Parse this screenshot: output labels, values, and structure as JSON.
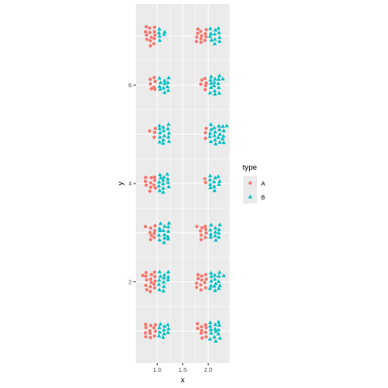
{
  "chart_data": {
    "type": "scatter",
    "subtype": "beeswarm",
    "xlabel": "x",
    "ylabel": "y",
    "xlim": [
      0.58,
      2.42
    ],
    "ylim": [
      0.35,
      7.65
    ],
    "x_ticks": [
      1.0,
      1.5,
      2.0
    ],
    "x_tick_labels": [
      "1.0",
      "1.5",
      "2.0"
    ],
    "y_ticks": [
      2,
      4,
      6
    ],
    "y_tick_labels": [
      "2",
      "4",
      "6"
    ],
    "y_levels": [
      1,
      2,
      3,
      4,
      5,
      6,
      7
    ],
    "grid": true,
    "panel_background": "#ebebeb",
    "grid_color": "#ffffff",
    "legend": {
      "title": "type",
      "position": "right",
      "entries": [
        {
          "label": "A",
          "shape": "circle",
          "color": "#f8766d"
        },
        {
          "label": "B",
          "shape": "triangle",
          "color": "#00bfc4"
        }
      ]
    },
    "series": [
      {
        "name": "A",
        "shape": "circle",
        "color": "#f8766d",
        "clusters": [
          {
            "x": 1,
            "y": 1,
            "count": 12
          },
          {
            "x": 1,
            "y": 2,
            "count": 16
          },
          {
            "x": 1,
            "y": 3,
            "count": 9
          },
          {
            "x": 1,
            "y": 4,
            "count": 11
          },
          {
            "x": 1,
            "y": 5,
            "count": 4
          },
          {
            "x": 1,
            "y": 6,
            "count": 7
          },
          {
            "x": 1,
            "y": 7,
            "count": 14
          },
          {
            "x": 2,
            "y": 1,
            "count": 10
          },
          {
            "x": 2,
            "y": 2,
            "count": 12
          },
          {
            "x": 2,
            "y": 3,
            "count": 9
          },
          {
            "x": 2,
            "y": 4,
            "count": 2
          },
          {
            "x": 2,
            "y": 5,
            "count": 3
          },
          {
            "x": 2,
            "y": 6,
            "count": 6
          },
          {
            "x": 2,
            "y": 7,
            "count": 12
          }
        ]
      },
      {
        "name": "B",
        "shape": "triangle",
        "color": "#00bfc4",
        "clusters": [
          {
            "x": 1,
            "y": 1,
            "count": 11
          },
          {
            "x": 1,
            "y": 2,
            "count": 13
          },
          {
            "x": 1,
            "y": 3,
            "count": 15
          },
          {
            "x": 1,
            "y": 4,
            "count": 14
          },
          {
            "x": 1,
            "y": 5,
            "count": 15
          },
          {
            "x": 1,
            "y": 6,
            "count": 12
          },
          {
            "x": 1,
            "y": 7,
            "count": 6
          },
          {
            "x": 2,
            "y": 1,
            "count": 15
          },
          {
            "x": 2,
            "y": 2,
            "count": 16
          },
          {
            "x": 2,
            "y": 3,
            "count": 12
          },
          {
            "x": 2,
            "y": 4,
            "count": 11
          },
          {
            "x": 2,
            "y": 5,
            "count": 21
          },
          {
            "x": 2,
            "y": 6,
            "count": 16
          },
          {
            "x": 2,
            "y": 7,
            "count": 12
          }
        ]
      }
    ]
  }
}
